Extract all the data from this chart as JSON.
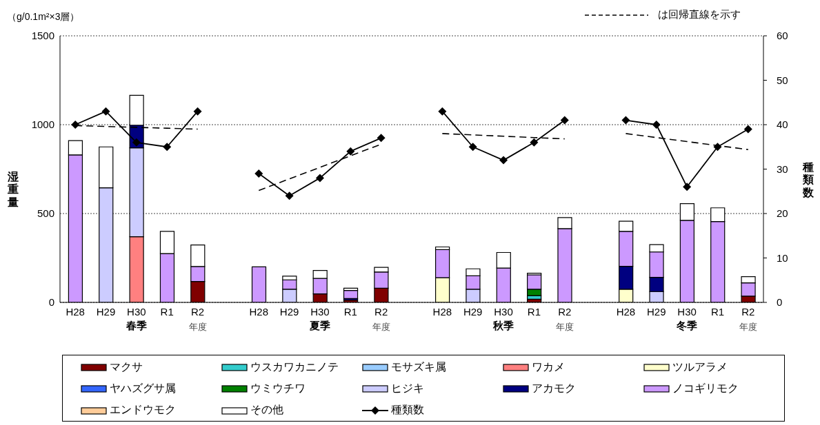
{
  "chart_data": {
    "type": "bar",
    "stacked": true,
    "categories": [
      "H28",
      "H29",
      "H30",
      "R1",
      "R2",
      null,
      "H28",
      "H29",
      "H30",
      "R1",
      "R2",
      null,
      "H28",
      "H29",
      "H30",
      "R1",
      "R2",
      null,
      "H28",
      "H29",
      "H30",
      "R1",
      "R2"
    ],
    "ylabel": "湿重量",
    "y2label": "種類数",
    "annotations": [
      "春季",
      "夏季",
      "秋季",
      "冬季",
      "年度",
      "年度",
      "年度",
      "年度",
      "（g/0.1m²×3層）",
      "は回帰直線を示す"
    ],
    "ylim": [
      0,
      1500
    ],
    "yticks": [
      0,
      500,
      1000,
      1500
    ],
    "y2lim": [
      0,
      60
    ],
    "y2ticks": [
      0,
      10,
      20,
      30,
      40,
      50,
      60
    ],
    "grid": "y",
    "legend": "bottom",
    "series": [
      {
        "name": "マクサ",
        "color": "#800000",
        "values": [
          null,
          null,
          null,
          null,
          118,
          null,
          null,
          null,
          48,
          13,
          80,
          null,
          null,
          null,
          null,
          18,
          null,
          null,
          null,
          null,
          null,
          null,
          35
        ]
      },
      {
        "name": "ウスカワカニノテ",
        "color": "#33cccc",
        "values": [
          null,
          null,
          null,
          null,
          null,
          null,
          null,
          null,
          null,
          null,
          null,
          null,
          null,
          null,
          null,
          20,
          null,
          null,
          null,
          null,
          null,
          null,
          null
        ]
      },
      {
        "name": "モサズキ属",
        "color": "#99ccff",
        "values": [
          null,
          null,
          null,
          null,
          null,
          null,
          null,
          null,
          null,
          null,
          null,
          null,
          null,
          null,
          null,
          null,
          null,
          null,
          null,
          null,
          null,
          null,
          null
        ]
      },
      {
        "name": "ワカメ",
        "color": "#ff8080",
        "values": [
          null,
          null,
          370,
          null,
          null,
          null,
          null,
          null,
          null,
          null,
          null,
          null,
          null,
          null,
          null,
          null,
          null,
          null,
          null,
          null,
          null,
          null,
          null
        ]
      },
      {
        "name": "ツルアラメ",
        "color": "#ffffcc",
        "values": [
          null,
          null,
          null,
          null,
          null,
          null,
          null,
          null,
          null,
          null,
          null,
          null,
          139,
          null,
          null,
          null,
          null,
          null,
          74,
          null,
          null,
          null,
          null
        ]
      },
      {
        "name": "ヤハズグサ属",
        "color": "#3366ff",
        "values": [
          null,
          null,
          null,
          null,
          null,
          null,
          null,
          null,
          null,
          null,
          null,
          null,
          null,
          null,
          null,
          null,
          null,
          null,
          null,
          null,
          null,
          null,
          null
        ]
      },
      {
        "name": "ウミウチワ",
        "color": "#008000",
        "values": [
          null,
          null,
          null,
          null,
          null,
          null,
          null,
          null,
          null,
          null,
          null,
          null,
          null,
          null,
          null,
          36,
          null,
          null,
          null,
          null,
          null,
          null,
          null
        ]
      },
      {
        "name": "ヒジキ",
        "color": "#ccccff",
        "values": [
          null,
          645,
          500,
          null,
          null,
          null,
          null,
          74,
          null,
          null,
          null,
          null,
          null,
          74,
          null,
          null,
          null,
          null,
          null,
          61,
          null,
          null,
          null
        ]
      },
      {
        "name": "アカモク",
        "color": "#000080",
        "values": [
          null,
          null,
          127,
          null,
          null,
          null,
          null,
          null,
          null,
          9,
          null,
          null,
          null,
          null,
          null,
          null,
          null,
          null,
          129,
          80,
          null,
          null,
          null
        ]
      },
      {
        "name": "ノコギリモク",
        "color": "#cc99ff",
        "values": [
          830,
          null,
          null,
          275,
          84,
          null,
          200,
          53,
          87,
          45,
          91,
          null,
          158,
          76,
          193,
          81,
          415,
          null,
          197,
          143,
          462,
          455,
          75
        ]
      },
      {
        "name": "エンドウモク",
        "color": "#ffcc99",
        "values": [
          null,
          null,
          null,
          null,
          null,
          null,
          null,
          null,
          null,
          null,
          null,
          null,
          null,
          null,
          null,
          null,
          null,
          null,
          null,
          null,
          null,
          null,
          null
        ]
      },
      {
        "name": "その他",
        "color": "#ffffff",
        "values": [
          80,
          230,
          168,
          125,
          121,
          null,
          null,
          21,
          45,
          13,
          26,
          null,
          15,
          39,
          88,
          9,
          62,
          null,
          57,
          41,
          94,
          77,
          35
        ]
      },
      {
        "name": "種類数",
        "type": "line",
        "axis": "y2",
        "color": "#000000",
        "marker": "diamond",
        "line_style": "solid",
        "values": [
          40,
          43,
          36,
          35,
          43,
          null,
          29,
          24,
          28,
          34,
          37,
          null,
          43,
          35,
          32,
          36,
          41,
          null,
          41,
          40,
          26,
          35,
          39
        ]
      },
      {
        "type": "line",
        "axis": "y2",
        "color": "#000000",
        "marker": "none",
        "line_style": "dashed",
        "values": [
          39.8,
          39.6,
          39.4,
          39.2,
          39.0,
          null,
          25.2,
          27.8,
          30.4,
          33.0,
          35.6,
          null,
          38.0,
          37.7,
          37.4,
          37.1,
          36.8,
          null,
          38.0,
          37.1,
          36.2,
          35.3,
          34.4
        ]
      }
    ]
  }
}
